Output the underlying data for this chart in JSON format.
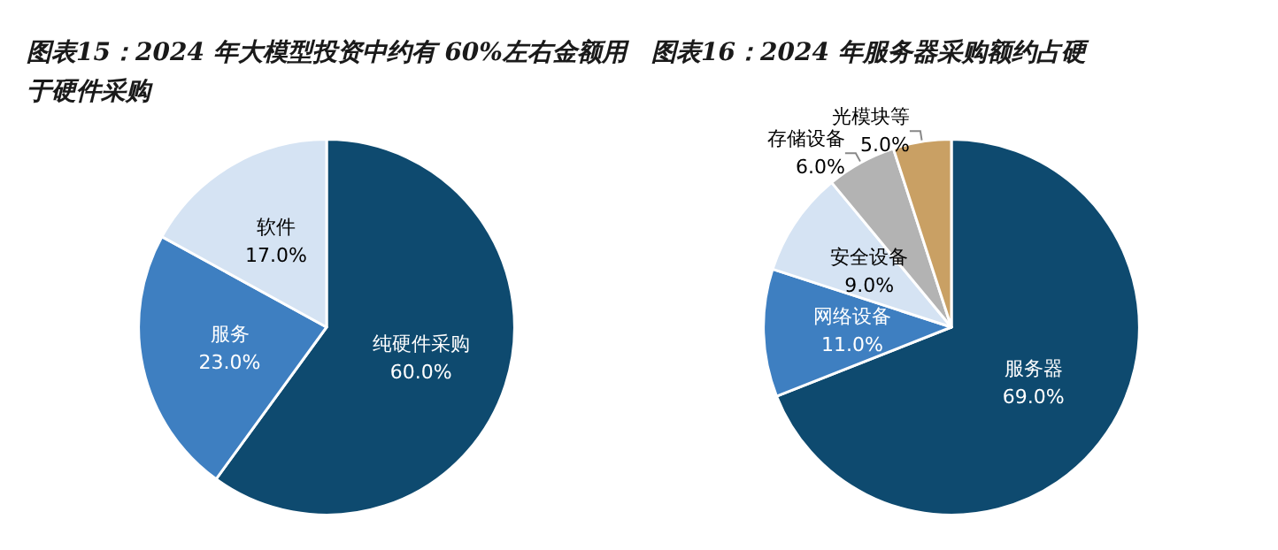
{
  "chart_data": [
    {
      "type": "pie",
      "title": "图表15：2024 年大模型投资中约有 60%左右金额用于硬件采购",
      "categories": [
        "纯硬件采购",
        "服务",
        "软件"
      ],
      "values": [
        60,
        23,
        17
      ],
      "colors": [
        "#0e4a6f",
        "#3e7fc1",
        "#d5e3f3"
      ],
      "value_labels": [
        "60.0%",
        "23.0%",
        "17.0%"
      ]
    },
    {
      "type": "pie",
      "title": "图表16：2024 年服务器采购额约占硬",
      "categories": [
        "服务器",
        "网络设备",
        "安全设备",
        "存储设备",
        "光模块等"
      ],
      "values": [
        69,
        11,
        9,
        6,
        5
      ],
      "colors": [
        "#0e4a6f",
        "#3e7fc1",
        "#d5e3f3",
        "#b3b3b3",
        "#c9a064"
      ],
      "value_labels": [
        "69.0%",
        "11.0%",
        "9.0%",
        "6.0%",
        "5.0%"
      ]
    }
  ]
}
